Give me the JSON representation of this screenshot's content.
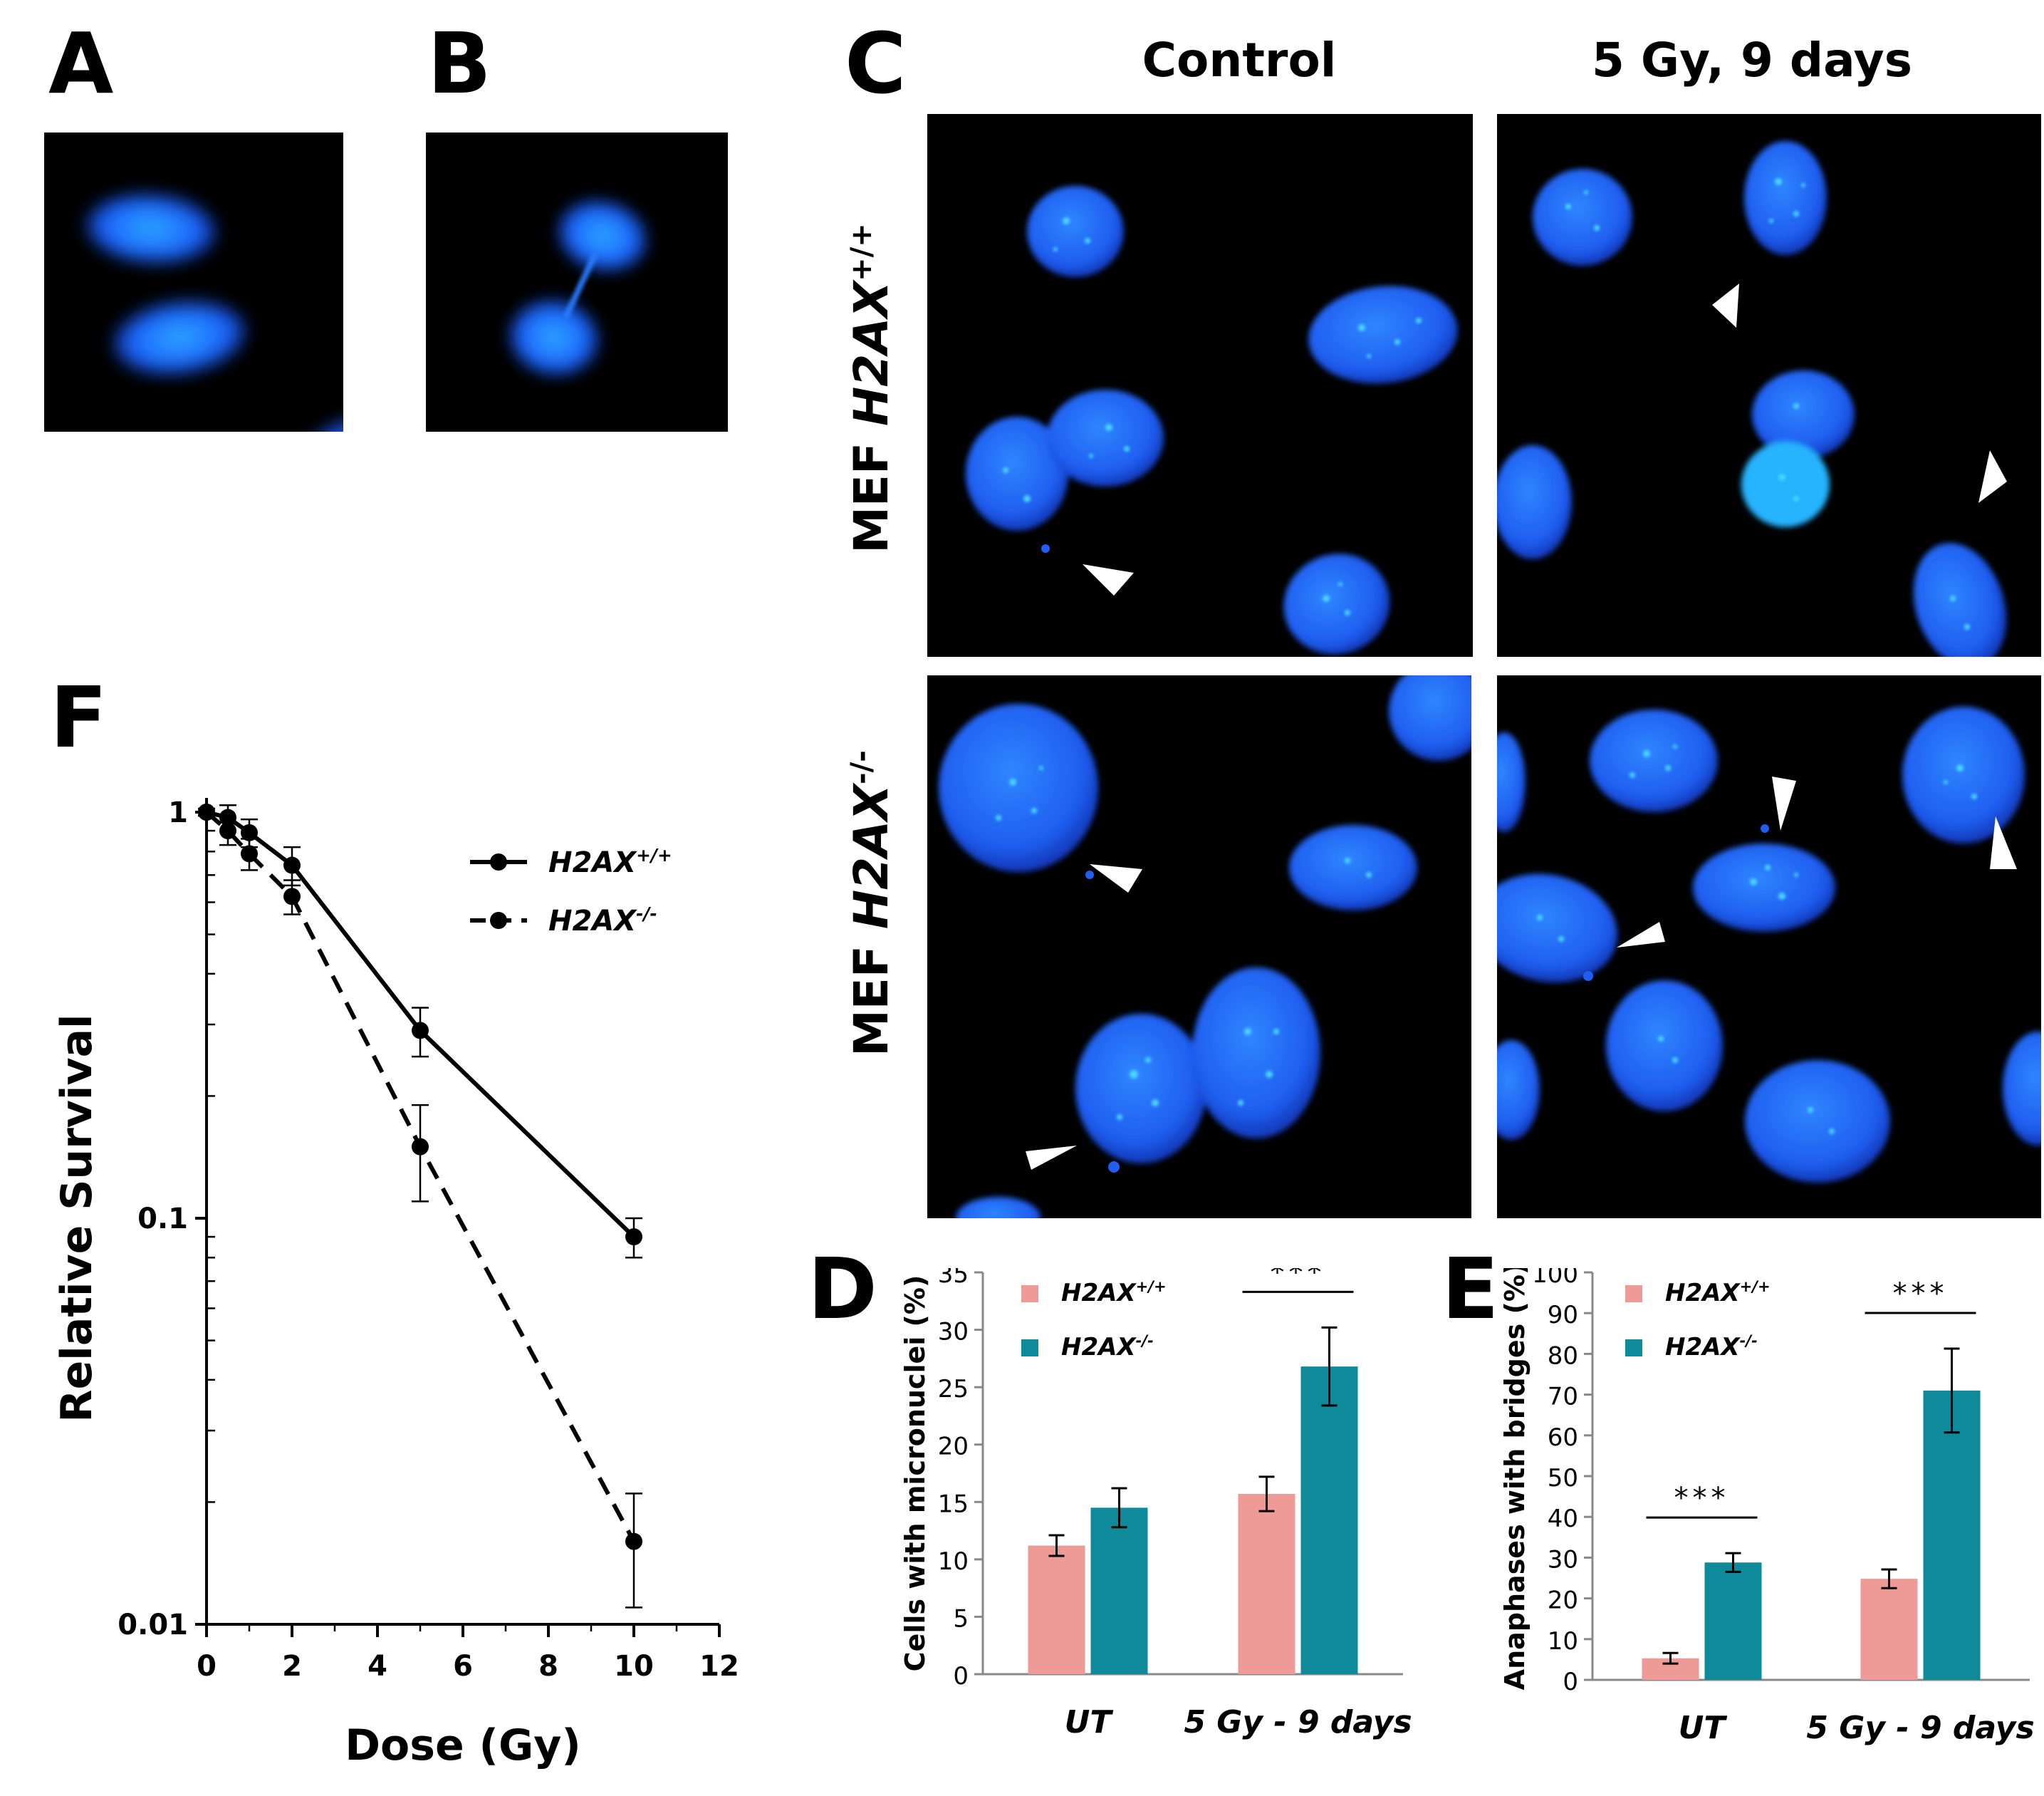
{
  "panels": {
    "A": "A",
    "B": "B",
    "C": "C",
    "D": "D",
    "E": "E",
    "F": "F"
  },
  "panel_c": {
    "col_titles": [
      "Control",
      "5 Gy, 9 days"
    ],
    "row_titles": [
      {
        "prefix": "MEF ",
        "gene": "H2AX",
        "sup": "+/+"
      },
      {
        "prefix": "MEF ",
        "gene": "H2AX",
        "sup": "-/-"
      }
    ]
  },
  "colors": {
    "wt_bar": "#ee9a96",
    "ko_bar": "#0f8a9a",
    "nucleus": "#1e5fff",
    "background_dark": "#000000"
  },
  "chart_data": [
    {
      "panel": "F",
      "type": "line",
      "title": "",
      "xlabel": "Dose (Gy)",
      "ylabel": "Relative Survival",
      "xlim": [
        0,
        12
      ],
      "ylim": [
        0.01,
        1
      ],
      "yscale": "log",
      "x_ticks": [
        0,
        2,
        4,
        6,
        8,
        10,
        12
      ],
      "y_ticks": [
        {
          "v": 1,
          "label": "1"
        },
        {
          "v": 0.1,
          "label": "0.1"
        },
        {
          "v": 0.01,
          "label": "0.01"
        }
      ],
      "legend": "top-right",
      "series": [
        {
          "name": "H2AX",
          "sup": "+/+",
          "style": "solid",
          "x": [
            0,
            0.5,
            1,
            2,
            5,
            10
          ],
          "y": [
            1,
            0.97,
            0.89,
            0.74,
            0.29,
            0.09
          ],
          "err": [
            0.02,
            0.07,
            0.07,
            0.08,
            0.04,
            0.01
          ]
        },
        {
          "name": "H2AX",
          "sup": "-/-",
          "style": "dashed",
          "x": [
            0,
            0.5,
            1,
            2,
            5,
            10
          ],
          "y": [
            1,
            0.9,
            0.79,
            0.62,
            0.15,
            0.016
          ],
          "err": [
            0.02,
            0.07,
            0.07,
            0.06,
            0.04,
            0.005
          ]
        }
      ]
    },
    {
      "panel": "D",
      "type": "bar",
      "title": "",
      "xlabel": "",
      "ylabel": "Cells with micronuclei (%)",
      "ylim": [
        0,
        35
      ],
      "y_ticks": [
        0,
        5,
        10,
        15,
        20,
        25,
        30,
        35
      ],
      "categories": [
        "UT",
        "5 Gy - 9 days"
      ],
      "legend": "top-left",
      "series": [
        {
          "name": "H2AX",
          "sup": "+/+",
          "values": [
            11.2,
            15.7
          ],
          "err": [
            0.9,
            1.5
          ]
        },
        {
          "name": "H2AX",
          "sup": "-/-",
          "values": [
            14.5,
            26.8
          ],
          "err": [
            1.7,
            3.4
          ]
        }
      ],
      "significance": [
        {
          "category": 1,
          "label": "***"
        }
      ]
    },
    {
      "panel": "E",
      "type": "bar",
      "title": "",
      "xlabel": "",
      "ylabel": "Anaphases with bridges (%)",
      "ylim": [
        0,
        100
      ],
      "y_ticks": [
        0,
        10,
        20,
        30,
        40,
        50,
        60,
        70,
        80,
        90,
        100
      ],
      "categories": [
        "UT",
        "5 Gy - 9 days"
      ],
      "legend": "top-left",
      "series": [
        {
          "name": "H2AX",
          "sup": "+/+",
          "values": [
            5.3,
            24.8
          ],
          "err": [
            1.3,
            2.3
          ]
        },
        {
          "name": "H2AX",
          "sup": "-/-",
          "values": [
            28.8,
            71.0
          ],
          "err": [
            2.3,
            10.3
          ]
        }
      ],
      "significance": [
        {
          "category": 0,
          "label": "***"
        },
        {
          "category": 1,
          "label": "***"
        }
      ]
    }
  ]
}
